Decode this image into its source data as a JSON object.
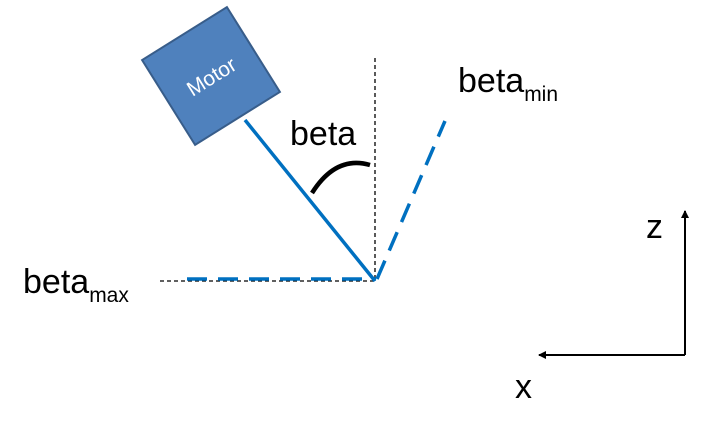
{
  "labels": {
    "angle": "beta",
    "beta_min_base": "beta",
    "beta_min_sub": "min",
    "beta_max_base": "beta",
    "beta_max_sub": "max",
    "axis_z": "z",
    "axis_x": "x"
  },
  "motor": {
    "label": "Motor",
    "fill_color": "#4f81bd",
    "border_color": "#385d8a"
  },
  "colors": {
    "arm": "#0070c0",
    "limits": "#0070c0",
    "reference": "#000000",
    "angle_arc": "#000000",
    "axes": "#000000",
    "label_text": "#000000",
    "motor_text": "#ffffff"
  },
  "line_styles": {
    "arm": "solid",
    "limits": "dashed",
    "reference": "dotted"
  }
}
